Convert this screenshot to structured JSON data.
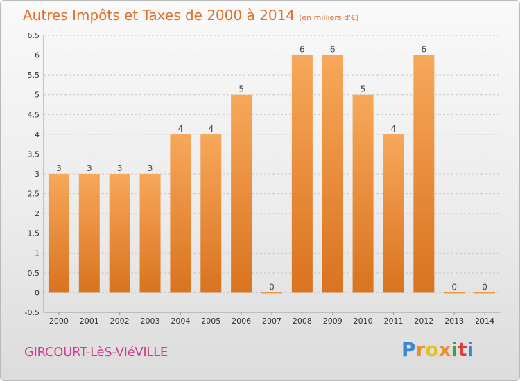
{
  "header": {
    "title": "Autres Impôts et Taxes de 2000 à 2014",
    "unit": "(en milliers d'€)"
  },
  "footer": {
    "municipality": "GIRCOURT-LèS-VIéVILLE",
    "logo": "Proxiti"
  },
  "colors": {
    "bar": "#f0963e",
    "title": "#e0702a",
    "municipality": "#cc3f8d"
  },
  "chart_data": {
    "type": "bar",
    "categories": [
      "2000",
      "2001",
      "2002",
      "2003",
      "2004",
      "2005",
      "2006",
      "2007",
      "2008",
      "2009",
      "2010",
      "2011",
      "2012",
      "2013",
      "2014"
    ],
    "values": [
      3,
      3,
      3,
      3,
      4,
      4,
      5,
      0,
      6,
      6,
      5,
      4,
      6,
      0,
      0
    ],
    "ylim": [
      -0.5,
      6.5
    ],
    "yticks": [
      "-0.5",
      "0",
      "0.5",
      "1",
      "1.5",
      "2",
      "2.5",
      "3",
      "3.5",
      "4",
      "4.5",
      "5",
      "5.5",
      "6",
      "6.5"
    ],
    "grid": true
  }
}
